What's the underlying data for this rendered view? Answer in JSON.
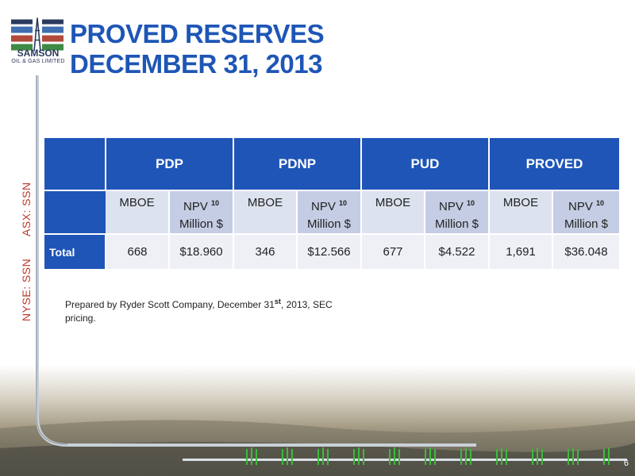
{
  "logo": {
    "name": "SAMSON",
    "sub": "OIL & GAS LIMITED"
  },
  "title": {
    "line1": "PROVED RESERVES",
    "line2": "DECEMBER 31, 2013"
  },
  "tickers": {
    "asx": "ASX: SSN",
    "nyse": "NYSE: SSN"
  },
  "table": {
    "groups": [
      "PDP",
      "PDNP",
      "PUD",
      "PROVED"
    ],
    "sub_mboe": "MBOE",
    "sub_npv": "NPV",
    "sub_npv_sup": "10",
    "sub_npv_unit": "Million $",
    "row_label": "Total",
    "values": [
      "668",
      "$18.960",
      "346",
      "$12.566",
      "677",
      "$4.522",
      "1,691",
      "$36.048"
    ]
  },
  "note": {
    "text_before": "Prepared by Ryder Scott Company, December 31",
    "sup": "st",
    "text_after": ", 2013, SEC pricing."
  },
  "page_number": "6",
  "colors": {
    "brand_blue": "#1f55b7",
    "ticker_red": "#c0392b",
    "logo_navy": "#2b3a5e"
  }
}
